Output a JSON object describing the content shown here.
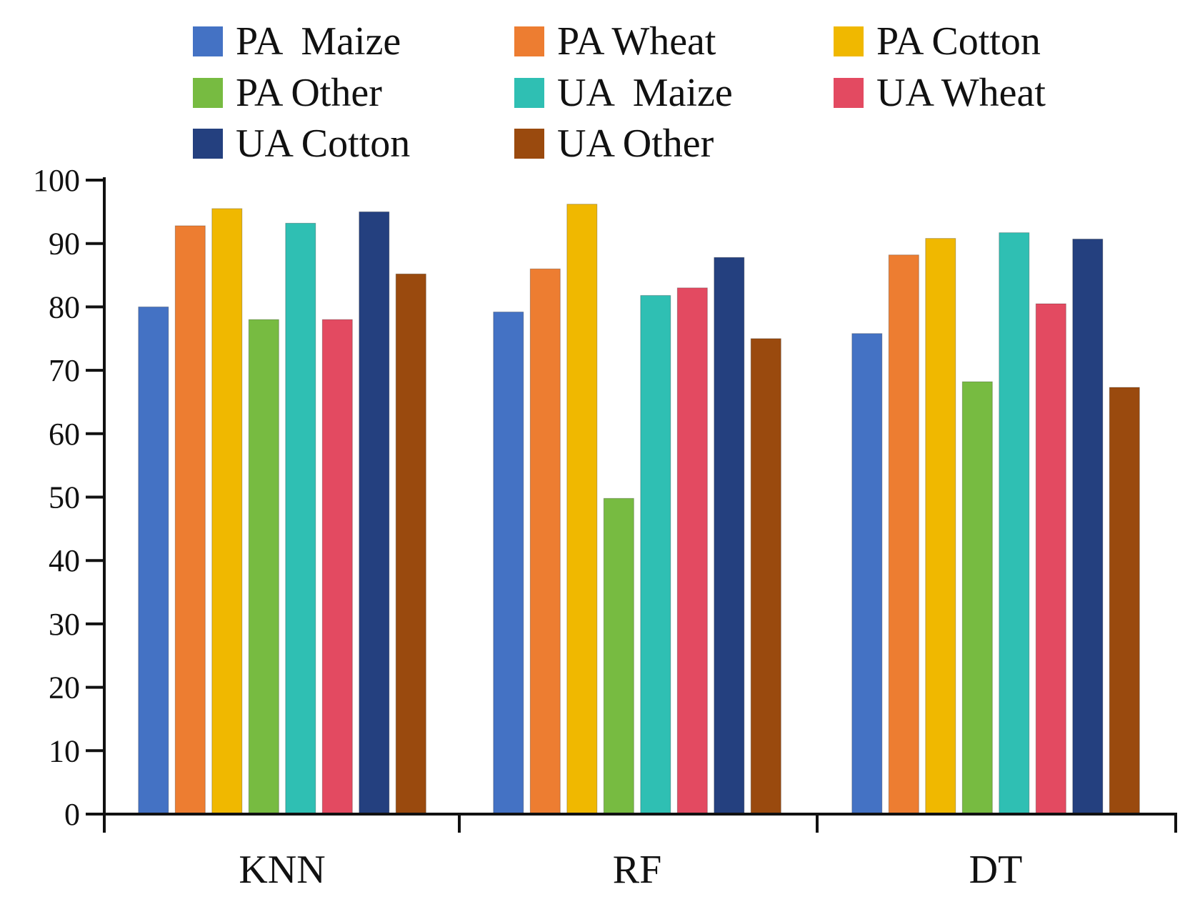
{
  "chart_data": {
    "type": "bar",
    "title": "",
    "xlabel": "",
    "ylabel": "",
    "ylim": [
      0,
      100
    ],
    "yticks": [
      0,
      10,
      20,
      30,
      40,
      50,
      60,
      70,
      80,
      90,
      100
    ],
    "grid": false,
    "legend_position": "top",
    "categories": [
      "KNN",
      "RF",
      "DT"
    ],
    "series": [
      {
        "name": "PA  Maize",
        "color": "#4472C4",
        "values": [
          80,
          79.2,
          75.8
        ]
      },
      {
        "name": "PA Wheat",
        "color": "#ED7D31",
        "values": [
          92.8,
          86,
          88.2
        ]
      },
      {
        "name": "PA Cotton",
        "color": "#F0B800",
        "values": [
          95.5,
          96.2,
          90.8
        ]
      },
      {
        "name": "PA Other",
        "color": "#77BB41",
        "values": [
          78,
          49.8,
          68.2
        ]
      },
      {
        "name": "UA  Maize",
        "color": "#2FBFB3",
        "values": [
          93.2,
          81.8,
          91.7
        ]
      },
      {
        "name": "UA Wheat",
        "color": "#E34A61",
        "values": [
          78,
          83,
          80.5
        ]
      },
      {
        "name": "UA Cotton",
        "color": "#24407F",
        "values": [
          95,
          87.8,
          90.7
        ]
      },
      {
        "name": "UA Other",
        "color": "#9A4A0E",
        "values": [
          85.2,
          75,
          67.3
        ]
      }
    ]
  }
}
